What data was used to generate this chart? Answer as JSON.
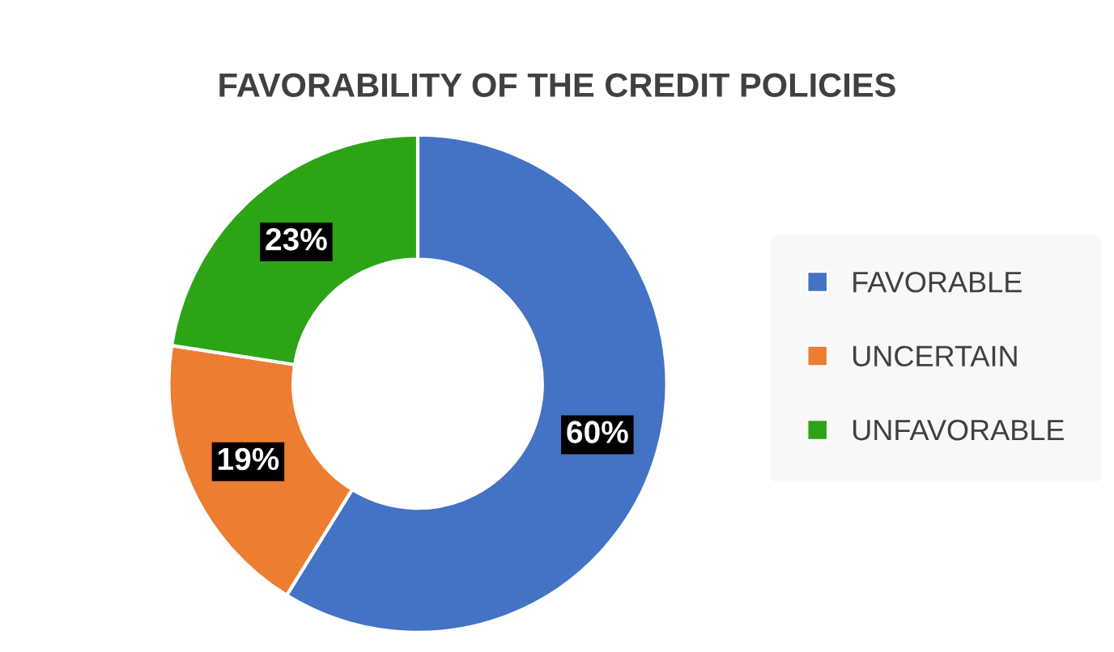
{
  "chart_data": {
    "type": "donut",
    "title": "FAVORABILITY OF THE CREDIT POLICIES",
    "categories": [
      "FAVORABLE",
      "UNCERTAIN",
      "UNFAVORABLE"
    ],
    "values": [
      60,
      19,
      23
    ],
    "colors": [
      "#4472c4",
      "#ed7d31",
      "#2ca416"
    ],
    "value_labels": [
      "60%",
      "19%",
      "23%"
    ],
    "legend": "right"
  }
}
